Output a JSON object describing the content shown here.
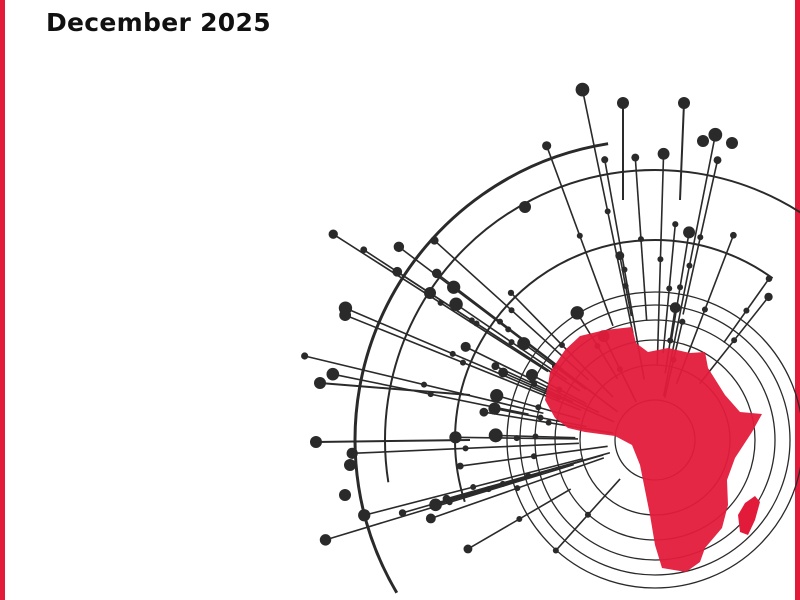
{
  "cover": {
    "date": "December 2025"
  },
  "colors": {
    "accent": "#e31b3b",
    "line": "#2a2a2a",
    "text": "#111111"
  },
  "illustration": {
    "subject": "africa-map-circuit-network"
  }
}
